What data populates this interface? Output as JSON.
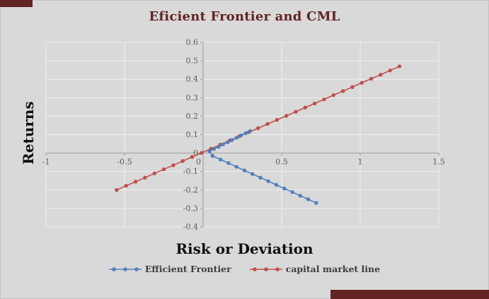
{
  "page": {
    "background_color": "#d9d9d9",
    "corner_accent_color": "#622423",
    "gridline_color": "#f0f0f0",
    "axis_color": "#9b9b9b",
    "tick_label_color": "#595959",
    "title_color": "#622423"
  },
  "chart_data": {
    "type": "line",
    "title": "Eficient Frontier and CML",
    "xlabel": "Risk or Deviation",
    "ylabel": "Returns",
    "xlim": [
      -1,
      1.5
    ],
    "ylim": [
      -0.4,
      0.6
    ],
    "grid": true,
    "legend_position": "bottom",
    "x_ticks": {
      "values": [
        -1,
        -0.5,
        0,
        0.5,
        1,
        1.5
      ],
      "labels": [
        "-1",
        "-0.5",
        "0",
        "0.5",
        "1",
        "1.5"
      ]
    },
    "y_ticks": {
      "values": [
        -0.4,
        -0.3,
        -0.2,
        -0.1,
        0,
        0.1,
        0.2,
        0.3,
        0.4,
        0.5,
        0.6
      ],
      "labels": [
        "-0.4",
        "-0.3",
        "-0.2",
        "-0.1",
        "0",
        "0.1",
        "0.2",
        "0.3",
        "0.4",
        "0.5",
        "0.6"
      ]
    },
    "series": [
      {
        "name": "Efficient Frontier",
        "color": "#4f81bd",
        "points": [
          [
            0.3,
            0.12
          ],
          [
            0.271,
            0.108
          ],
          [
            0.242,
            0.096
          ],
          [
            0.213,
            0.083
          ],
          [
            0.184,
            0.071
          ],
          [
            0.156,
            0.059
          ],
          [
            0.127,
            0.047
          ],
          [
            0.098,
            0.034
          ],
          [
            0.069,
            0.022
          ],
          [
            0.04,
            0.01
          ],
          [
            0.06,
            -0.015
          ],
          [
            0.111,
            -0.035
          ],
          [
            0.162,
            -0.054
          ],
          [
            0.212,
            -0.074
          ],
          [
            0.263,
            -0.094
          ],
          [
            0.314,
            -0.113
          ],
          [
            0.365,
            -0.133
          ],
          [
            0.415,
            -0.152
          ],
          [
            0.466,
            -0.172
          ],
          [
            0.517,
            -0.192
          ],
          [
            0.568,
            -0.211
          ],
          [
            0.618,
            -0.231
          ],
          [
            0.669,
            -0.25
          ],
          [
            0.72,
            -0.27
          ]
        ]
      },
      {
        "name": "capital market line",
        "color": "#c0504d",
        "points": [
          [
            -0.55,
            -0.2
          ],
          [
            -0.49,
            -0.177
          ],
          [
            -0.43,
            -0.155
          ],
          [
            -0.37,
            -0.133
          ],
          [
            -0.31,
            -0.11
          ],
          [
            -0.25,
            -0.088
          ],
          [
            -0.19,
            -0.066
          ],
          [
            -0.13,
            -0.043
          ],
          [
            -0.07,
            -0.021
          ],
          [
            -0.01,
            0.001
          ],
          [
            0.05,
            0.024
          ],
          [
            0.11,
            0.046
          ],
          [
            0.17,
            0.068
          ],
          [
            0.23,
            0.091
          ],
          [
            0.29,
            0.113
          ],
          [
            0.35,
            0.135
          ],
          [
            0.41,
            0.158
          ],
          [
            0.47,
            0.18
          ],
          [
            0.53,
            0.202
          ],
          [
            0.59,
            0.224
          ],
          [
            0.65,
            0.247
          ],
          [
            0.71,
            0.269
          ],
          [
            0.77,
            0.291
          ],
          [
            0.83,
            0.314
          ],
          [
            0.89,
            0.336
          ],
          [
            0.95,
            0.358
          ],
          [
            1.01,
            0.381
          ],
          [
            1.07,
            0.403
          ],
          [
            1.13,
            0.425
          ],
          [
            1.19,
            0.448
          ],
          [
            1.25,
            0.47
          ]
        ]
      }
    ]
  }
}
